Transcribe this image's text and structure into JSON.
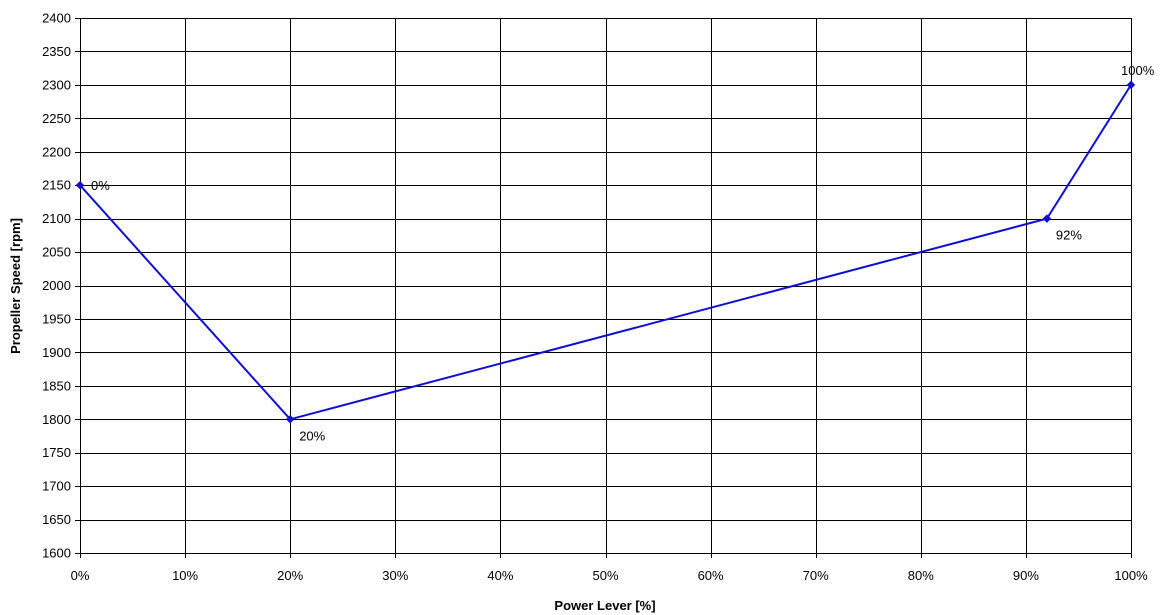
{
  "chart_data": {
    "type": "line",
    "title": "",
    "xlabel": "Power Lever [%]",
    "ylabel": "Propeller Speed [rpm]",
    "xlim": [
      0,
      100
    ],
    "ylim": [
      1600,
      2400
    ],
    "x_ticks": [
      0,
      10,
      20,
      30,
      40,
      50,
      60,
      70,
      80,
      90,
      100
    ],
    "x_tick_labels": [
      "0%",
      "10%",
      "20%",
      "30%",
      "40%",
      "50%",
      "60%",
      "70%",
      "80%",
      "90%",
      "100%"
    ],
    "y_ticks": [
      1600,
      1650,
      1700,
      1750,
      1800,
      1850,
      1900,
      1950,
      2000,
      2050,
      2100,
      2150,
      2200,
      2250,
      2300,
      2350,
      2400
    ],
    "y_tick_labels": [
      "1600",
      "1650",
      "1700",
      "1750",
      "1800",
      "1850",
      "1900",
      "1950",
      "2000",
      "2050",
      "2100",
      "2150",
      "2200",
      "2250",
      "2300",
      "2350",
      "2400"
    ],
    "grid": true,
    "legend": "none",
    "series": [
      {
        "color": "#1010d0",
        "points": [
          {
            "x": 0,
            "y": 2150,
            "label": "0%"
          },
          {
            "x": 20,
            "y": 1800,
            "label": "20%"
          },
          {
            "x": 92,
            "y": 2100,
            "label": "92%"
          },
          {
            "x": 100,
            "y": 2300,
            "label": "100%"
          }
        ]
      }
    ]
  }
}
